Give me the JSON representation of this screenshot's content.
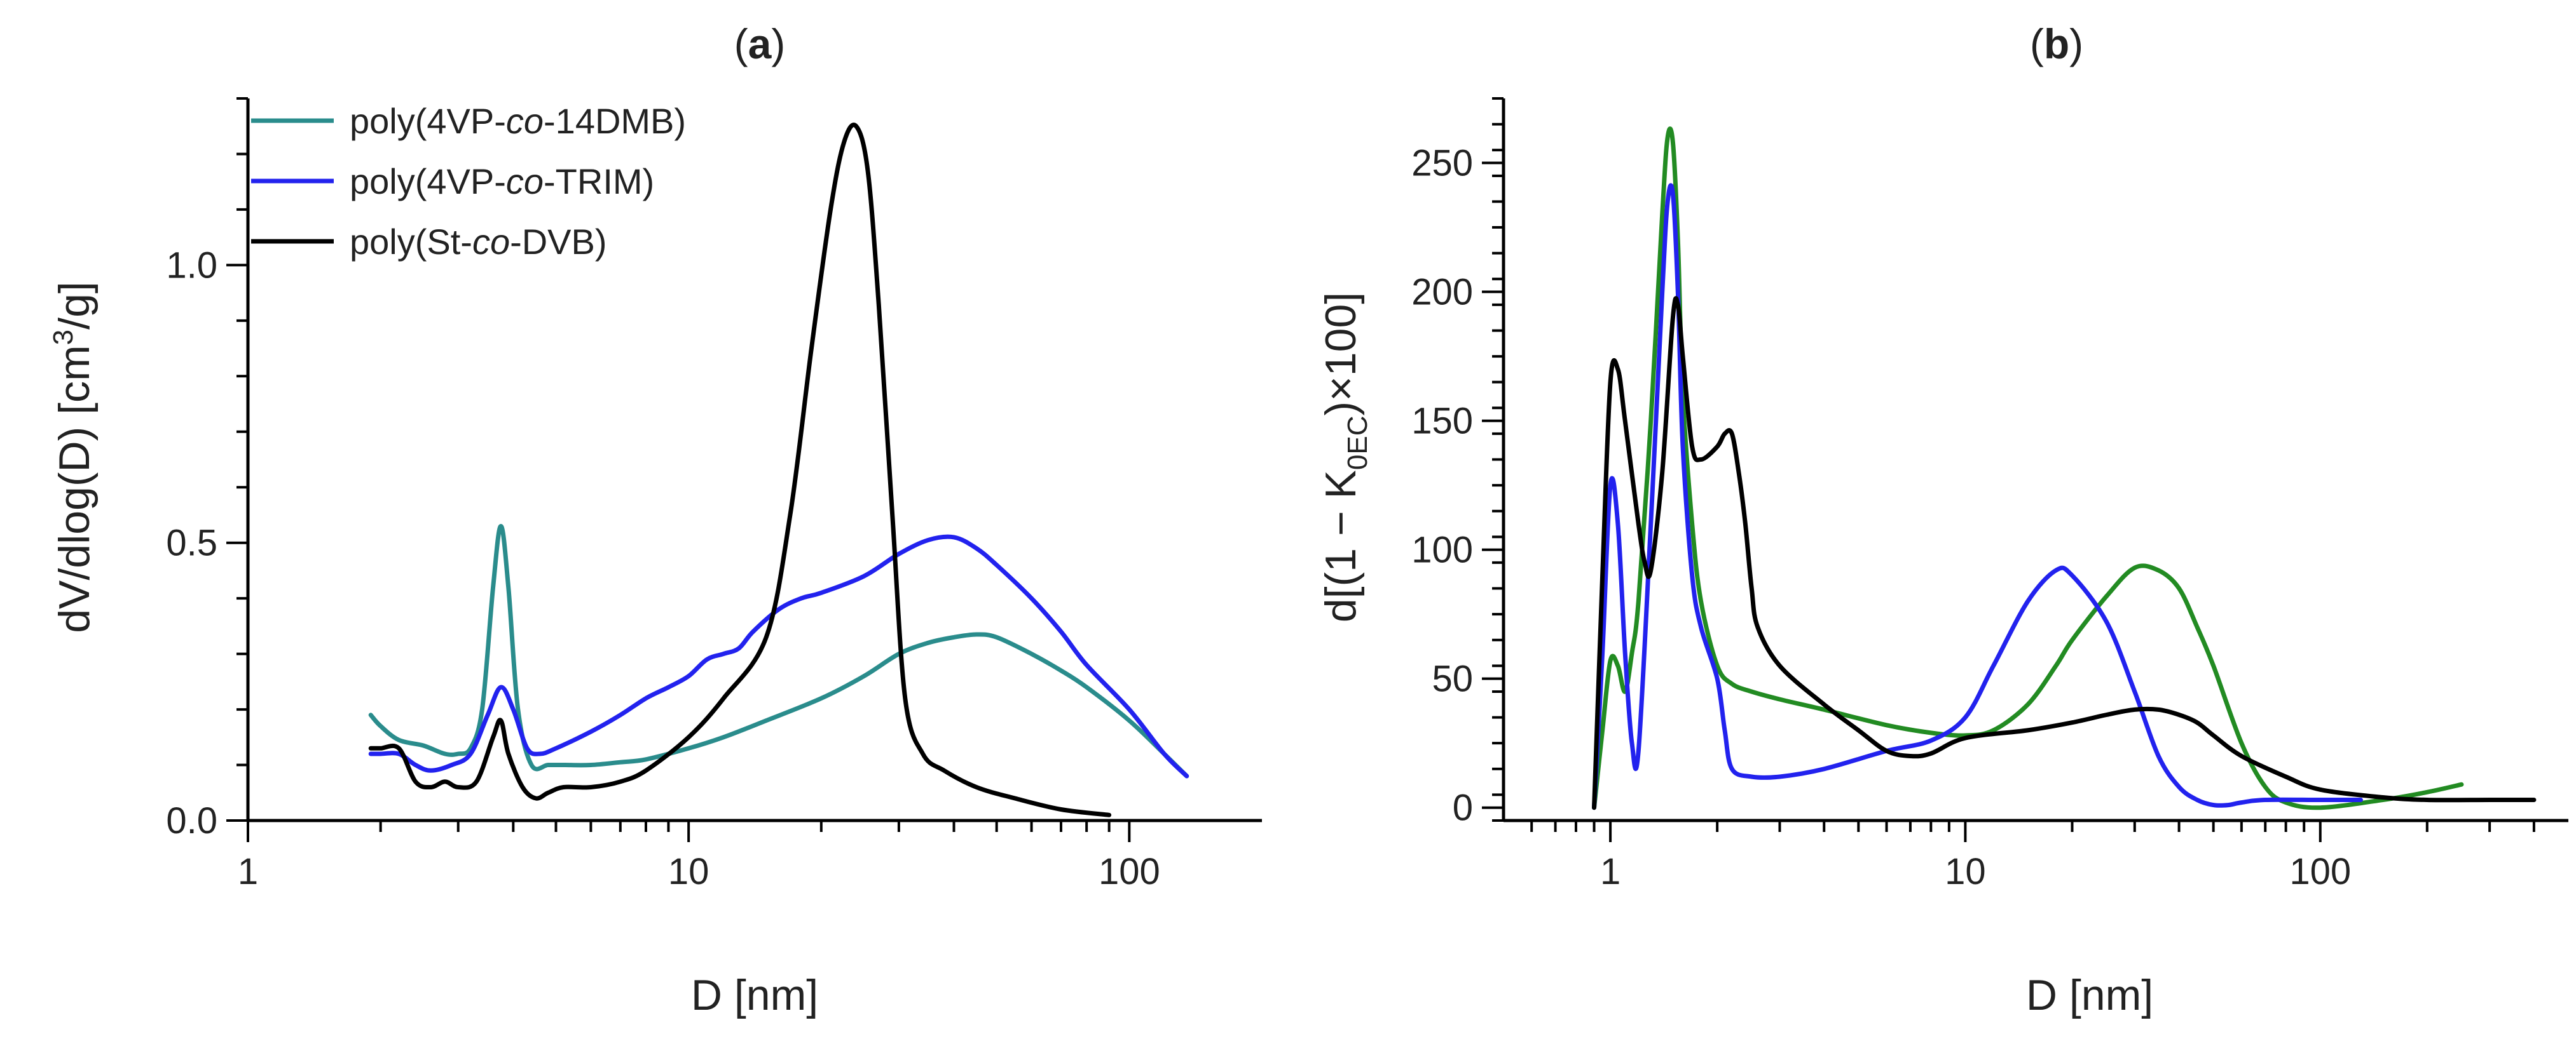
{
  "chart_data": [
    {
      "type": "line",
      "panel_label": "a",
      "xlabel": "D [nm]",
      "ylabel": "dV/dlog(D) [cm3/g]",
      "ylabel_parts": {
        "pre": "dV/dlog(D) [cm",
        "sup": "3",
        "post": "/g]"
      },
      "x_scale": "log",
      "xlim": [
        1,
        200
      ],
      "ylim": [
        0,
        1.3
      ],
      "x_ticks": [
        1,
        10,
        100
      ],
      "x_tick_labels": [
        "1",
        "10",
        "100"
      ],
      "y_ticks": [
        0,
        0.5,
        1.0
      ],
      "y_tick_labels": [
        "0.0",
        "0.5",
        "1.0"
      ],
      "legend_position": "top-left",
      "series": [
        {
          "name": "poly(4VP-co-14DMB)",
          "name_parts": {
            "pre": "poly(4VP-",
            "ital": "co",
            "post": "-14DMB)"
          },
          "color": "#2a8c8c",
          "x": [
            1.9,
            2.0,
            2.2,
            2.5,
            2.8,
            3.0,
            3.2,
            3.4,
            3.6,
            3.75,
            3.9,
            4.1,
            4.4,
            4.8,
            5.2,
            6.0,
            7.0,
            8.0,
            10,
            12,
            15,
            20,
            25,
            30,
            35,
            40,
            45,
            50,
            60,
            70,
            80,
            100,
            120,
            135
          ],
          "y": [
            0.19,
            0.17,
            0.145,
            0.135,
            0.12,
            0.12,
            0.13,
            0.2,
            0.42,
            0.53,
            0.42,
            0.2,
            0.1,
            0.1,
            0.1,
            0.1,
            0.105,
            0.11,
            0.13,
            0.15,
            0.18,
            0.22,
            0.26,
            0.3,
            0.32,
            0.33,
            0.335,
            0.33,
            0.3,
            0.27,
            0.24,
            0.18,
            0.12,
            0.08
          ]
        },
        {
          "name": "poly(4VP-co-TRIM)",
          "name_parts": {
            "pre": "poly(4VP-",
            "ital": "co",
            "post": "-TRIM)"
          },
          "color": "#2222ee",
          "x": [
            1.9,
            2.0,
            2.2,
            2.4,
            2.6,
            2.9,
            3.2,
            3.5,
            3.75,
            4.0,
            4.3,
            4.6,
            5.0,
            6.0,
            7.0,
            8.0,
            9.0,
            10,
            11,
            12,
            13,
            14,
            16,
            18,
            20,
            25,
            30,
            35,
            40,
            45,
            50,
            60,
            70,
            80,
            100,
            120,
            135
          ],
          "y": [
            0.12,
            0.12,
            0.12,
            0.1,
            0.09,
            0.1,
            0.12,
            0.19,
            0.24,
            0.2,
            0.13,
            0.12,
            0.13,
            0.16,
            0.19,
            0.22,
            0.24,
            0.26,
            0.29,
            0.3,
            0.31,
            0.34,
            0.38,
            0.4,
            0.41,
            0.44,
            0.48,
            0.505,
            0.51,
            0.49,
            0.46,
            0.4,
            0.34,
            0.28,
            0.2,
            0.12,
            0.08
          ]
        },
        {
          "name": "poly(St-co-DVB)",
          "name_parts": {
            "pre": "poly(St-",
            "ital": "co",
            "post": "-DVB)"
          },
          "color": "#000000",
          "x": [
            1.9,
            2.0,
            2.2,
            2.4,
            2.6,
            2.8,
            3.0,
            3.3,
            3.6,
            3.75,
            3.9,
            4.2,
            4.5,
            4.8,
            5.2,
            6.0,
            7.0,
            8.0,
            10,
            12,
            15,
            17,
            19,
            21,
            22.5,
            24,
            25.5,
            27,
            29,
            31,
            34,
            38,
            45,
            55,
            70,
            90
          ],
          "y": [
            0.13,
            0.13,
            0.13,
            0.07,
            0.06,
            0.07,
            0.06,
            0.07,
            0.15,
            0.18,
            0.12,
            0.06,
            0.04,
            0.05,
            0.06,
            0.06,
            0.07,
            0.09,
            0.15,
            0.22,
            0.33,
            0.55,
            0.85,
            1.1,
            1.22,
            1.25,
            1.17,
            0.93,
            0.55,
            0.22,
            0.12,
            0.09,
            0.06,
            0.04,
            0.02,
            0.01
          ]
        }
      ]
    },
    {
      "type": "line",
      "panel_label": "b",
      "xlabel": "D [nm]",
      "ylabel": "d[(1 − K0EC)×100]",
      "ylabel_parts": {
        "pre": "d[(1 − K",
        "sub": "0EC",
        "post": ")×100]"
      },
      "x_scale": "log",
      "xlim": [
        0.5,
        500
      ],
      "ylim": [
        -5,
        275
      ],
      "x_ticks": [
        1,
        10,
        100
      ],
      "x_tick_labels": [
        "1",
        "10",
        "100"
      ],
      "y_ticks": [
        0,
        50,
        100,
        150,
        200,
        250
      ],
      "y_tick_labels": [
        "0",
        "50",
        "100",
        "150",
        "200",
        "250"
      ],
      "series": [
        {
          "color": "#228b22",
          "x": [
            0.9,
            0.95,
            1.0,
            1.05,
            1.1,
            1.15,
            1.2,
            1.3,
            1.4,
            1.45,
            1.5,
            1.55,
            1.6,
            1.7,
            1.8,
            2.0,
            2.2,
            2.5,
            3.0,
            4.0,
            6.0,
            8.0,
            10,
            12,
            15,
            18,
            20,
            25,
            30,
            35,
            40,
            45,
            50,
            60,
            70,
            80,
            100,
            150,
            200,
            250
          ],
          "y": [
            0,
            30,
            57,
            55,
            45,
            60,
            80,
            150,
            230,
            260,
            258,
            220,
            160,
            110,
            80,
            55,
            48,
            45,
            42,
            38,
            32,
            29,
            28,
            30,
            40,
            55,
            65,
            82,
            93,
            92,
            85,
            70,
            55,
            25,
            8,
            2,
            0,
            3,
            6,
            9
          ]
        },
        {
          "color": "#2222ee",
          "x": [
            0.9,
            0.95,
            1.0,
            1.05,
            1.1,
            1.15,
            1.2,
            1.3,
            1.4,
            1.45,
            1.5,
            1.55,
            1.6,
            1.7,
            1.8,
            2.0,
            2.1,
            2.2,
            2.5,
            3.0,
            4.0,
            6.0,
            8.0,
            10,
            12,
            15,
            18,
            20,
            25,
            30,
            35,
            40,
            45,
            50,
            55,
            60,
            70,
            100,
            130
          ],
          "y": [
            0,
            60,
            125,
            110,
            60,
            25,
            22,
            110,
            200,
            235,
            238,
            200,
            140,
            90,
            70,
            50,
            30,
            15,
            12,
            12,
            15,
            22,
            26,
            35,
            55,
            80,
            92,
            90,
            72,
            45,
            20,
            8,
            3,
            1,
            1,
            2,
            3,
            3,
            3
          ]
        },
        {
          "color": "#000000",
          "x": [
            0.9,
            0.95,
            1.0,
            1.05,
            1.1,
            1.2,
            1.25,
            1.3,
            1.4,
            1.5,
            1.55,
            1.6,
            1.7,
            1.8,
            2.0,
            2.1,
            2.2,
            2.3,
            2.4,
            2.5,
            2.6,
            3.0,
            4.0,
            5.0,
            6.0,
            7.0,
            8.0,
            10,
            15,
            20,
            25,
            30,
            35,
            40,
            45,
            50,
            60,
            80,
            100,
            150,
            200,
            300,
            400
          ],
          "y": [
            0,
            90,
            165,
            170,
            150,
            110,
            95,
            92,
            130,
            190,
            195,
            175,
            140,
            135,
            140,
            145,
            145,
            130,
            110,
            85,
            70,
            55,
            40,
            30,
            22,
            20,
            21,
            27,
            30,
            33,
            36,
            38,
            38,
            36,
            33,
            28,
            20,
            12,
            7,
            4,
            3,
            3,
            3
          ]
        }
      ]
    }
  ]
}
